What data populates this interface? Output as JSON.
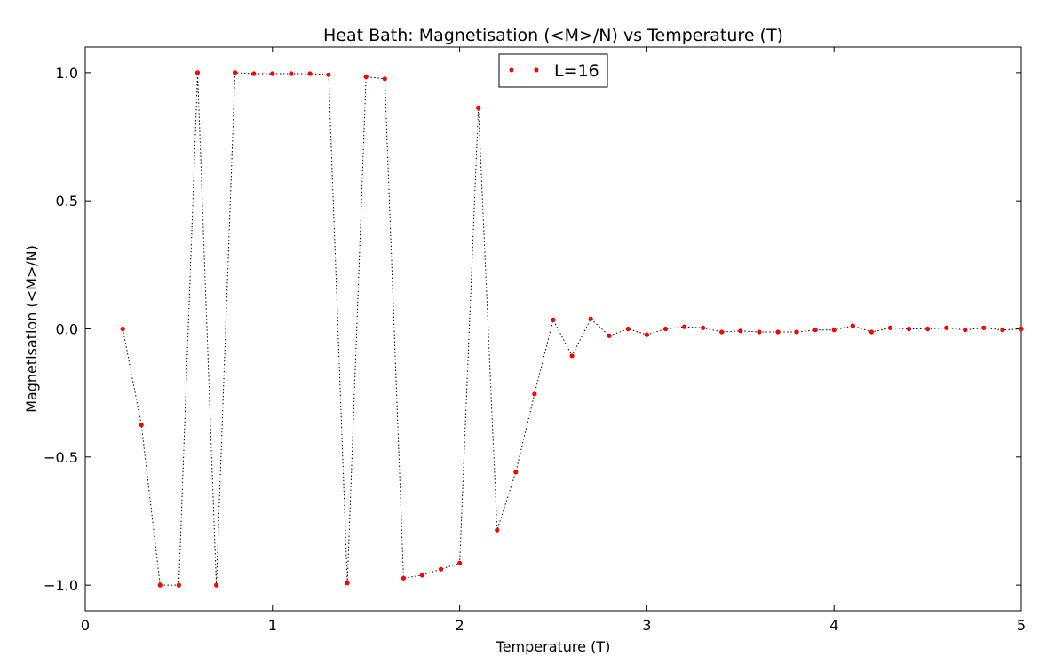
{
  "chart_data": {
    "type": "line",
    "title": "Heat Bath: Magnetisation (<M>/N) vs Temperature (T)",
    "xlabel": "Temperature (T)",
    "ylabel": "Magnetisation (<M>/N)",
    "xlim": [
      0,
      5
    ],
    "ylim": [
      -1.1,
      1.1
    ],
    "xticks": [
      0,
      1,
      2,
      3,
      4,
      5
    ],
    "xtick_labels": [
      "0",
      "1",
      "2",
      "3",
      "4",
      "5"
    ],
    "yticks": [
      -1.0,
      -0.5,
      0.0,
      0.5,
      1.0
    ],
    "ytick_labels": [
      "−1.0",
      "−0.5",
      "0.0",
      "0.5",
      "1.0"
    ],
    "grid": false,
    "legend_position": "top-center",
    "colors": {
      "marker": "#ff0000",
      "line": "#000000"
    },
    "series": [
      {
        "name": "L=16",
        "marker": "dot",
        "linestyle": "dotted",
        "x": [
          0.2,
          0.3,
          0.4,
          0.5,
          0.6,
          0.7,
          0.8,
          0.9,
          1.0,
          1.1,
          1.2,
          1.3,
          1.4,
          1.5,
          1.6,
          1.7,
          1.8,
          1.9,
          2.0,
          2.1,
          2.2,
          2.3,
          2.4,
          2.5,
          2.6,
          2.7,
          2.8,
          2.9,
          3.0,
          3.1,
          3.2,
          3.3,
          3.4,
          3.5,
          3.6,
          3.7,
          3.8,
          3.9,
          4.0,
          4.1,
          4.2,
          4.3,
          4.4,
          4.5,
          4.6,
          4.7,
          4.8,
          4.9,
          5.0
        ],
        "y": [
          0.0,
          -0.375,
          -1.0,
          -1.0,
          1.0,
          -1.0,
          1.0,
          0.996,
          0.996,
          0.996,
          0.996,
          0.992,
          -0.992,
          0.984,
          0.976,
          -0.973,
          -0.961,
          -0.938,
          -0.914,
          0.863,
          -0.785,
          -0.559,
          -0.254,
          0.035,
          -0.105,
          0.039,
          -0.027,
          0.0,
          -0.023,
          0.0,
          0.008,
          0.004,
          -0.012,
          -0.008,
          -0.012,
          -0.012,
          -0.012,
          -0.004,
          -0.004,
          0.012,
          -0.012,
          0.004,
          0.0,
          0.0,
          0.004,
          -0.004,
          0.004,
          -0.004,
          0.0
        ]
      }
    ]
  }
}
